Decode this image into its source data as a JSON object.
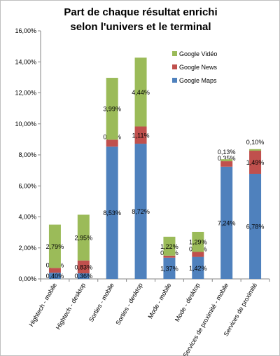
{
  "chart_data": {
    "type": "bar",
    "stacked": true,
    "title_lines": [
      "Part de chaque résultat enrichi",
      "selon l'univers et le terminal"
    ],
    "categories": [
      "Hightech - mobile",
      "Hightech - desktop",
      "Sorties - mobile",
      "Sorties - desktop",
      "Mode - mobile",
      "Mode - desktop",
      "Services de proximité - mobile",
      "Services de proximité"
    ],
    "series": [
      {
        "name": "Google Maps",
        "color": "#4f81bd",
        "values": [
          0.4,
          0.36,
          8.53,
          8.72,
          1.37,
          1.42,
          7.24,
          6.78
        ],
        "labels": [
          "0,40%",
          "0,36%",
          "8,53%",
          "8,72%",
          "1,37%",
          "1,42%",
          "7,24%",
          "6,78%"
        ]
      },
      {
        "name": "Google News",
        "color": "#c0504d",
        "values": [
          0.31,
          0.83,
          0.45,
          1.11,
          0.13,
          0.32,
          0.35,
          1.49
        ],
        "labels": [
          "0,31%",
          "0,83%",
          "0,45%",
          "1,11%",
          "0,13%",
          "0,32%",
          "0,35%",
          "1,49%"
        ]
      },
      {
        "name": "Google Vidéo",
        "color": "#9bbb59",
        "values": [
          2.79,
          2.95,
          3.99,
          4.44,
          1.22,
          1.29,
          0.13,
          0.1
        ],
        "labels": [
          "2,79%",
          "2,95%",
          "3,99%",
          "4,44%",
          "1,22%",
          "1,29%",
          "0,13%",
          "0,10%"
        ]
      }
    ],
    "yticks": [
      "0,00%",
      "2,00%",
      "4,00%",
      "6,00%",
      "8,00%",
      "10,00%",
      "12,00%",
      "14,00%",
      "16,00%"
    ],
    "ylim": [
      0,
      16
    ],
    "grid": false,
    "legend_position": "top-right",
    "legend_order": [
      "Google Vidéo",
      "Google News",
      "Google Maps"
    ]
  }
}
